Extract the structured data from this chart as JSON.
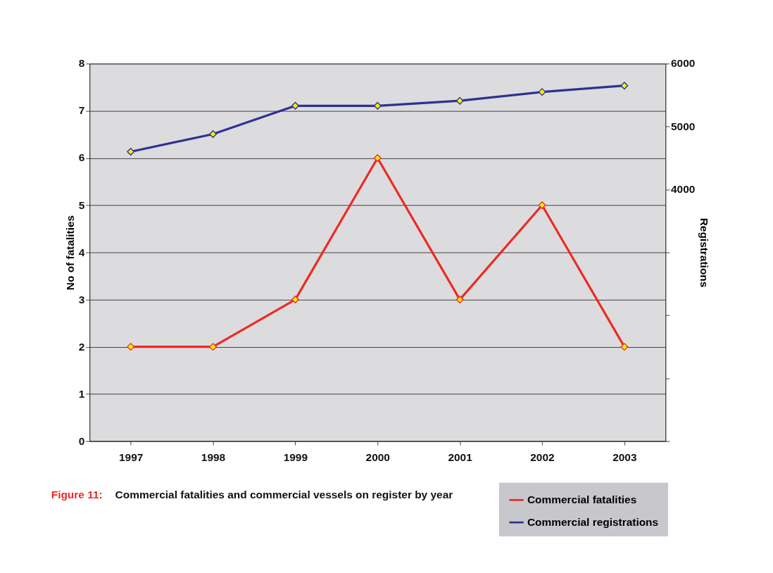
{
  "chart_data": {
    "type": "line",
    "categories": [
      "1997",
      "1998",
      "1999",
      "2000",
      "2001",
      "2002",
      "2003"
    ],
    "series": [
      {
        "name": "Commercial fatalities",
        "color": "#ee2a24",
        "values": [
          2,
          2,
          3,
          6,
          3,
          5,
          2
        ]
      },
      {
        "name": "Commercial registrations",
        "color": "#2e3192",
        "axis": "y2",
        "values": [
          4600,
          4880,
          5330,
          5330,
          5410,
          5550,
          5650
        ]
      }
    ],
    "ylabel": "No of fatalities",
    "y2label": "Registrations",
    "ylim": [
      0,
      8
    ],
    "yticks": [
      0,
      1,
      2,
      3,
      4,
      5,
      6,
      7,
      8
    ],
    "y2lim": [
      0,
      6000
    ],
    "y2ticks": [
      {
        "value": 0,
        "label": null
      },
      {
        "value": 1000,
        "label": null
      },
      {
        "value": 2000,
        "label": null
      },
      {
        "value": 3000,
        "label": null
      },
      4000,
      5000,
      6000
    ],
    "grid": "y",
    "legend": "bottom right",
    "marker": "diamond",
    "line_style": "solid",
    "annotations": [
      "Figure 11:",
      "Commercial fatalities and commercial vessels on register by year"
    ]
  }
}
